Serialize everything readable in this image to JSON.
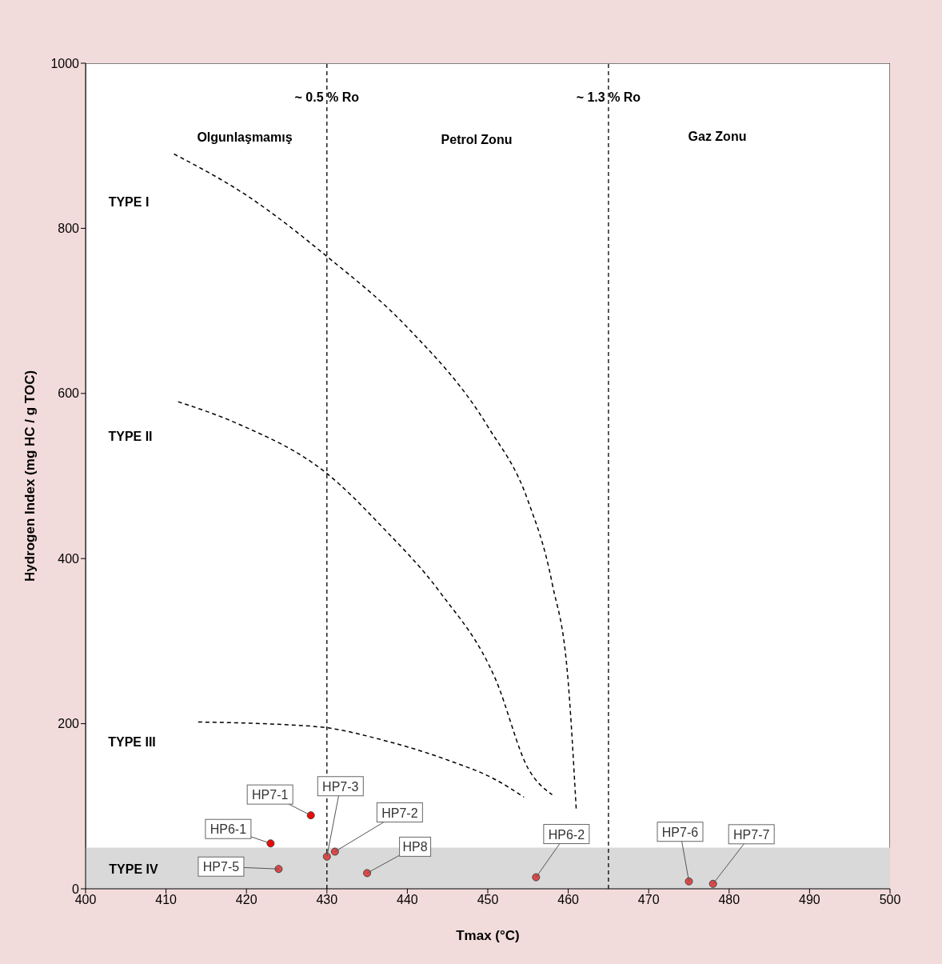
{
  "chart_data": {
    "type": "scatter",
    "xlabel": "Tmax (°C)",
    "ylabel": "Hydrogen Index (mg HC / g TOC)",
    "xlim": [
      400,
      500
    ],
    "xticks": [
      400,
      410,
      420,
      430,
      440,
      450,
      460,
      470,
      480,
      490,
      500
    ],
    "ylim": [
      0,
      1000
    ],
    "yticks": [
      0,
      200,
      400,
      600,
      800,
      1000
    ],
    "grid": false,
    "series": [
      {
        "type": "line",
        "marker": "none",
        "color": "#000000",
        "line_style": "dashed",
        "x": [
          411,
          420,
          430,
          440,
          450,
          455,
          458,
          460,
          461
        ],
        "values": [
          890,
          840,
          766,
          680,
          560,
          470,
          370,
          250,
          95
        ]
      },
      {
        "type": "line",
        "marker": "none",
        "color": "#000000",
        "line_style": "dashed",
        "x": [
          411.5,
          419,
          430,
          437,
          444,
          451,
          455,
          458
        ],
        "values": [
          590,
          563,
          503,
          437,
          360,
          253,
          146,
          114
        ]
      },
      {
        "type": "line",
        "marker": "none",
        "color": "#000000",
        "line_style": "dashed",
        "x": [
          414,
          422,
          430,
          437,
          445,
          451,
          454.5
        ],
        "values": [
          202,
          200,
          195,
          180,
          156,
          132,
          111
        ]
      },
      {
        "marker": "circle",
        "x": [
          423,
          428,
          430,
          431,
          424,
          435,
          456,
          475,
          478
        ],
        "values": [
          55,
          89,
          39,
          45,
          24,
          19,
          14,
          9,
          6
        ],
        "colors": [
          "#ff0000",
          "#ff0000",
          "#e04848",
          "#e04848",
          "#e04848",
          "#e04848",
          "#e04848",
          "#e04848",
          "#e04848"
        ],
        "value_labels": [
          "HP6-1",
          "HP7-1",
          "HP7-3",
          "HP7-2",
          "HP7-5",
          "HP8",
          "HP6-2",
          "HP7-6",
          "HP7-7"
        ]
      }
    ],
    "ref_lines": [
      {
        "axis": "x",
        "value": 430,
        "label": "~ 0.5 % Ro",
        "line_style": "dashed",
        "color": "#000000"
      },
      {
        "axis": "x",
        "value": 465,
        "label": "~ 1.3 % Ro",
        "line_style": "dashed",
        "color": "#000000"
      }
    ],
    "bands": [
      {
        "axis": "y",
        "from": 0,
        "to": 50,
        "color": "#d9d9d9"
      }
    ],
    "annotations": [
      "Olgunlaşmamış",
      "Petrol Zonu",
      "Gaz Zonu",
      "TYPE I",
      "TYPE II",
      "TYPE III",
      "TYPE IV"
    ]
  }
}
